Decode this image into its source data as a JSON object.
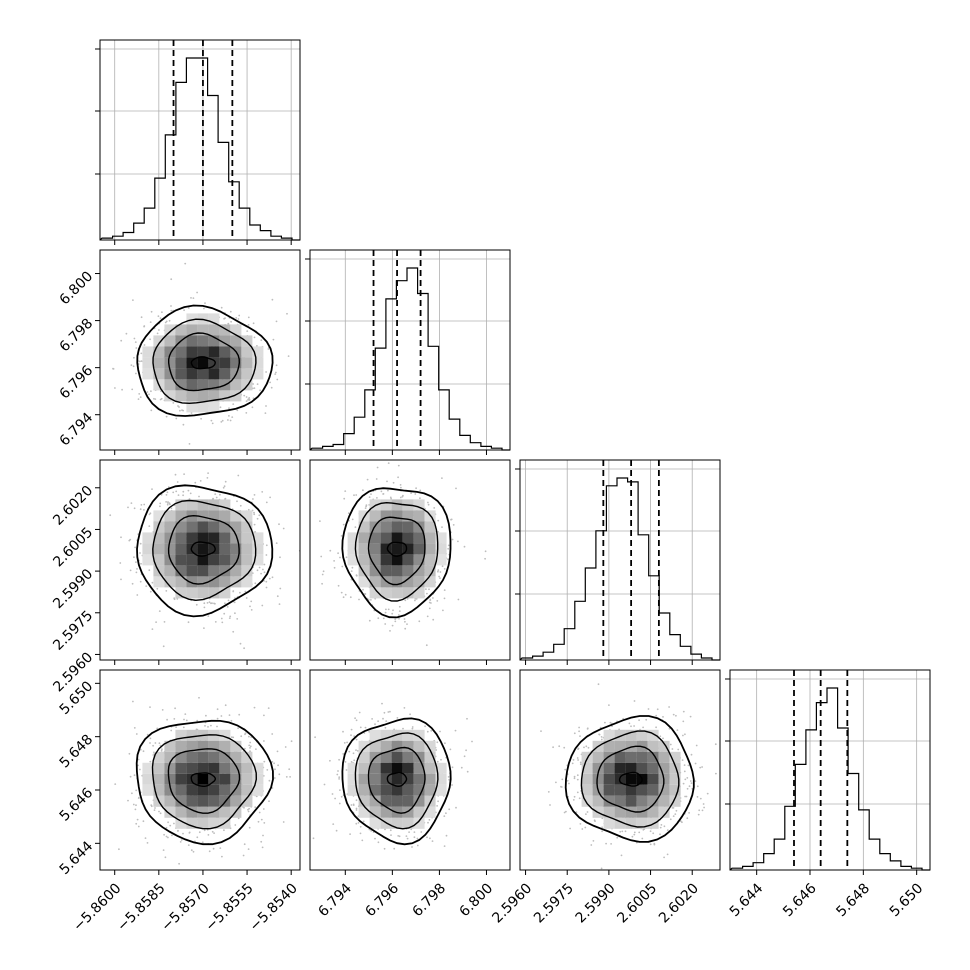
{
  "chart_data": {
    "type": "corner",
    "parameters": [
      {
        "index": 0,
        "range": [
          -5.8605,
          -5.8537
        ],
        "ticks": [
          -5.86,
          -5.8585,
          -5.857,
          -5.8555,
          -5.854
        ],
        "tick_labels": [
          "−5.8600",
          "−5.8585",
          "−5.8570",
          "−5.8555",
          "−5.8540"
        ],
        "quantiles": [
          -5.858,
          -5.857,
          -5.856
        ]
      },
      {
        "index": 1,
        "range": [
          6.7925,
          6.801
        ],
        "ticks": [
          6.794,
          6.796,
          6.798,
          6.8
        ],
        "tick_labels": [
          "6.794",
          "6.796",
          "6.798",
          "6.800"
        ],
        "quantiles": [
          6.7952,
          6.7962,
          6.7972
        ]
      },
      {
        "index": 2,
        "range": [
          2.5958,
          2.603
        ],
        "ticks": [
          2.596,
          2.5975,
          2.599,
          2.6005,
          2.602
        ],
        "tick_labels": [
          "2.5960",
          "2.5975",
          "2.5990",
          "2.6005",
          "2.6020"
        ],
        "quantiles": [
          2.5988,
          2.5998,
          2.6008
        ]
      },
      {
        "index": 3,
        "range": [
          5.643,
          5.6505
        ],
        "ticks": [
          5.644,
          5.646,
          5.648,
          5.65
        ],
        "tick_labels": [
          "5.644",
          "5.646",
          "5.648",
          "5.650"
        ],
        "quantiles": [
          5.6454,
          5.6464,
          5.6474
        ]
      }
    ],
    "histograms": [
      [
        1,
        2,
        4,
        9,
        17,
        33,
        56,
        84,
        97,
        97,
        77,
        52,
        31,
        17,
        8,
        5,
        2,
        1
      ],
      [
        1,
        2,
        3,
        9,
        18,
        33,
        56,
        83,
        93,
        100,
        86,
        57,
        33,
        17,
        8,
        4,
        2,
        1
      ],
      [
        1,
        2,
        4,
        8,
        16,
        30,
        47,
        66,
        89,
        93,
        91,
        64,
        43,
        24,
        13,
        7,
        3,
        1
      ],
      [
        1,
        2,
        4,
        9,
        17,
        35,
        58,
        77,
        92,
        100,
        78,
        53,
        33,
        17,
        9,
        5,
        2,
        1
      ]
    ],
    "grid": true,
    "line_color": "#000000",
    "grid_color": "#b0b0b0",
    "point_color": "#bdbdbd"
  }
}
